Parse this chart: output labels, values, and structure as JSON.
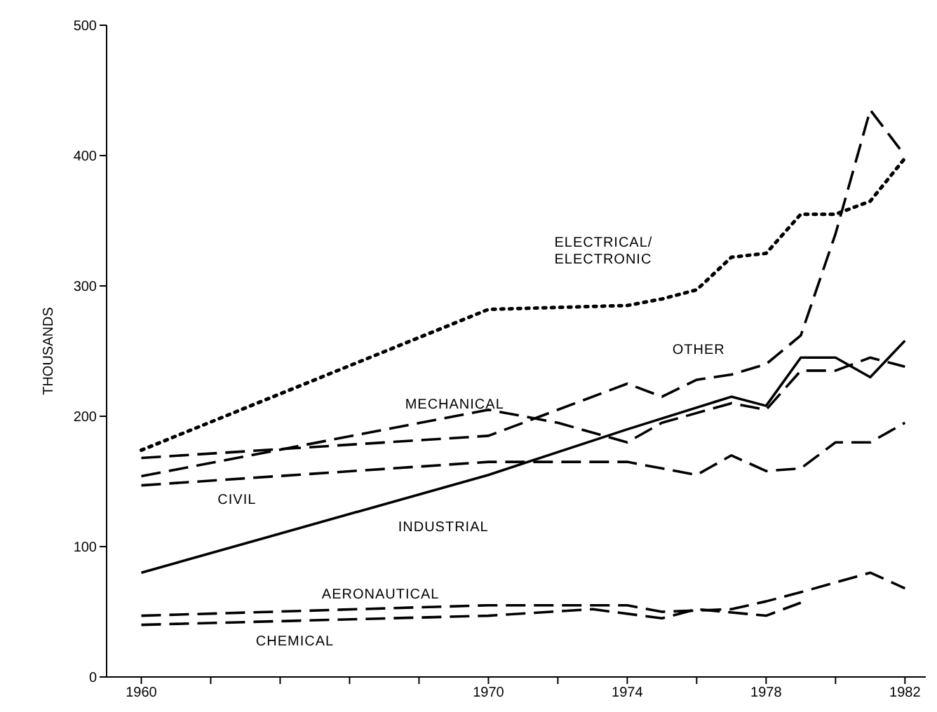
{
  "chart_data": {
    "type": "line",
    "ylabel": "THOUSANDS",
    "xlim": [
      1959,
      1982.6
    ],
    "ylim": [
      0,
      500
    ],
    "xticks": [
      1960,
      {
        "value": 1962,
        "label": null
      },
      {
        "value": 1964,
        "label": null
      },
      {
        "value": 1966,
        "label": null
      },
      {
        "value": 1968,
        "label": null
      },
      1970,
      {
        "value": 1972,
        "label": null
      },
      1974,
      {
        "value": 1976,
        "label": null
      },
      1978,
      {
        "value": 1980,
        "label": null
      },
      1982
    ],
    "yticks": [
      0,
      100,
      200,
      300,
      400,
      500
    ],
    "grid": false,
    "marker": "none",
    "series": [
      {
        "name": "ELECTRICAL/ ELECTRONIC",
        "color": "#000000",
        "line_style": "dotted",
        "x": [
          1960,
          1970,
          1974,
          1975,
          1976,
          1977,
          1978,
          1979,
          1980,
          1981,
          1982
        ],
        "values": [
          174,
          282,
          285,
          290,
          297,
          322,
          325,
          355,
          355,
          365,
          398
        ]
      },
      {
        "name": "OTHER",
        "color": "#000000",
        "line_style": "dashed",
        "x": [
          1960,
          1970,
          1974,
          1975,
          1976,
          1977,
          1978,
          1979,
          1980,
          1981,
          1982
        ],
        "values": [
          168,
          185,
          225,
          215,
          228,
          232,
          240,
          262,
          340,
          435,
          400
        ]
      },
      {
        "name": "MECHANICAL",
        "color": "#000000",
        "line_style": "dashed",
        "x": [
          1960,
          1970,
          1972,
          1974,
          1975,
          1977,
          1978,
          1979,
          1980,
          1981,
          1982
        ],
        "values": [
          154,
          205,
          195,
          180,
          195,
          210,
          205,
          235,
          235,
          245,
          238
        ]
      },
      {
        "name": "INDUSTRIAL",
        "color": "#000000",
        "line_style": "solid",
        "x": [
          1960,
          1970,
          1974,
          1977,
          1978,
          1979,
          1980,
          1981,
          1982
        ],
        "values": [
          80,
          155,
          190,
          215,
          208,
          245,
          245,
          230,
          258
        ]
      },
      {
        "name": "CIVIL",
        "color": "#000000",
        "line_style": "dashed",
        "x": [
          1960,
          1970,
          1974,
          1976,
          1977,
          1978,
          1979,
          1980,
          1981,
          1982
        ],
        "values": [
          147,
          165,
          165,
          155,
          170,
          158,
          160,
          180,
          180,
          195
        ]
      },
      {
        "name": "AERONAUTICAL",
        "color": "#000000",
        "line_style": "dashed",
        "x": [
          1960,
          1970,
          1974,
          1975,
          1977,
          1978,
          1979,
          1981,
          1982
        ],
        "values": [
          47,
          55,
          55,
          50,
          52,
          58,
          65,
          80,
          68
        ]
      },
      {
        "name": "CHEMICAL",
        "color": "#000000",
        "line_style": "dashed",
        "x": [
          1960,
          1970,
          1973,
          1975,
          1976,
          1978,
          1979
        ],
        "values": [
          40,
          47,
          52,
          45,
          52,
          47,
          57
        ]
      }
    ]
  }
}
